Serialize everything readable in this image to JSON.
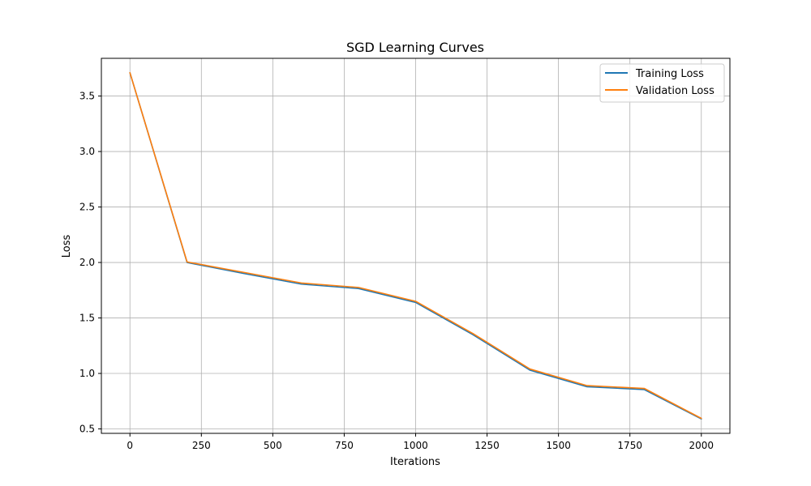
{
  "chart_data": {
    "type": "line",
    "title": "SGD Learning Curves",
    "xlabel": "Iterations",
    "ylabel": "Loss",
    "xlim": [
      -100,
      2100
    ],
    "ylim": [
      0.46,
      3.84
    ],
    "xticks": [
      0,
      250,
      500,
      750,
      1000,
      1250,
      1500,
      1750,
      2000
    ],
    "yticks": [
      0.5,
      1.0,
      1.5,
      2.0,
      2.5,
      3.0,
      3.5
    ],
    "grid": true,
    "legend_position": "top-right",
    "x": [
      0,
      200,
      400,
      600,
      800,
      1000,
      1200,
      1400,
      1600,
      1800,
      2000
    ],
    "series": [
      {
        "name": "Training Loss",
        "color": "#1f77b4",
        "values": [
          3.71,
          2.0,
          1.9,
          1.805,
          1.765,
          1.64,
          1.35,
          1.03,
          0.88,
          0.855,
          0.59
        ]
      },
      {
        "name": "Validation Loss",
        "color": "#ff7f0e",
        "values": [
          3.71,
          2.005,
          1.91,
          1.815,
          1.775,
          1.65,
          1.36,
          1.04,
          0.89,
          0.865,
          0.595
        ]
      }
    ]
  }
}
